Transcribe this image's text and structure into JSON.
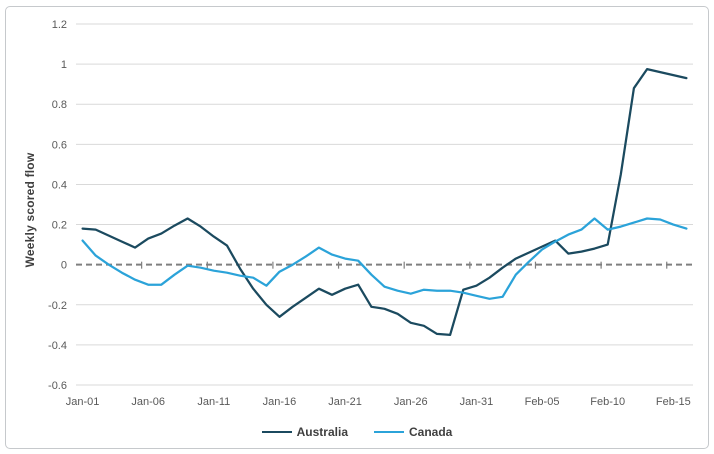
{
  "figure": {
    "y_axis_title": "Weekly scored flow"
  },
  "chart_data": {
    "type": "line",
    "title": "",
    "xlabel": "",
    "ylabel": "Weekly scored flow",
    "ylim": [
      -0.6,
      1.2
    ],
    "grid_on": true,
    "legend_position": "bottom",
    "grid_color": "#d9d9d9",
    "tick_color": "#595959",
    "zero_line_color": "#7f7f7f",
    "y_tick_labels": [
      "1.2",
      "1",
      "0.8",
      "0.6",
      "0.4",
      "0.2",
      "0",
      "-0.2",
      "-0.4",
      "-0.6"
    ],
    "y_tick_values": [
      1.2,
      1.0,
      0.8,
      0.6,
      0.4,
      0.2,
      0,
      -0.2,
      -0.4,
      -0.6
    ],
    "x_tick_labels": [
      "Jan-01",
      "Jan-06",
      "Jan-11",
      "Jan-16",
      "Jan-21",
      "Jan-26",
      "Jan-31",
      "Feb-05",
      "Feb-10",
      "Feb-15"
    ],
    "x_tick_indices": [
      0,
      5,
      10,
      15,
      20,
      25,
      30,
      35,
      40,
      45
    ],
    "x": [
      "Jan-01",
      "Jan-02",
      "Jan-03",
      "Jan-04",
      "Jan-05",
      "Jan-06",
      "Jan-07",
      "Jan-08",
      "Jan-09",
      "Jan-10",
      "Jan-11",
      "Jan-12",
      "Jan-13",
      "Jan-14",
      "Jan-15",
      "Jan-16",
      "Jan-17",
      "Jan-18",
      "Jan-19",
      "Jan-20",
      "Jan-21",
      "Jan-22",
      "Jan-23",
      "Jan-24",
      "Jan-25",
      "Jan-26",
      "Jan-27",
      "Jan-28",
      "Jan-29",
      "Jan-30",
      "Jan-31",
      "Feb-01",
      "Feb-02",
      "Feb-03",
      "Feb-04",
      "Feb-05",
      "Feb-06",
      "Feb-07",
      "Feb-08",
      "Feb-09",
      "Feb-10",
      "Feb-11",
      "Feb-12",
      "Feb-13",
      "Feb-14",
      "Feb-15",
      "Feb-16"
    ],
    "series": [
      {
        "name": "Australia",
        "color": "#1b4a5f",
        "values": [
          0.18,
          0.175,
          0.145,
          0.115,
          0.085,
          0.13,
          0.155,
          0.195,
          0.23,
          0.19,
          0.14,
          0.095,
          -0.02,
          -0.12,
          -0.2,
          -0.26,
          -0.21,
          -0.165,
          -0.12,
          -0.15,
          -0.12,
          -0.1,
          -0.21,
          -0.22,
          -0.245,
          -0.29,
          -0.305,
          -0.345,
          -0.35,
          -0.125,
          -0.105,
          -0.065,
          -0.015,
          0.03,
          0.06,
          0.09,
          0.12,
          0.055,
          0.065,
          0.08,
          0.1,
          0.45,
          0.88,
          0.975,
          0.96,
          0.945,
          0.93
        ]
      },
      {
        "name": "Canada",
        "color": "#2ba3d9",
        "values": [
          0.12,
          0.045,
          0.0,
          -0.04,
          -0.075,
          -0.1,
          -0.1,
          -0.05,
          -0.005,
          -0.015,
          -0.03,
          -0.04,
          -0.055,
          -0.065,
          -0.105,
          -0.035,
          0.0,
          0.04,
          0.085,
          0.05,
          0.03,
          0.02,
          -0.05,
          -0.11,
          -0.13,
          -0.145,
          -0.125,
          -0.13,
          -0.13,
          -0.14,
          -0.155,
          -0.17,
          -0.16,
          -0.05,
          0.015,
          0.075,
          0.115,
          0.15,
          0.175,
          0.23,
          0.175,
          0.19,
          0.21,
          0.23,
          0.225,
          0.2,
          0.18
        ]
      }
    ]
  }
}
